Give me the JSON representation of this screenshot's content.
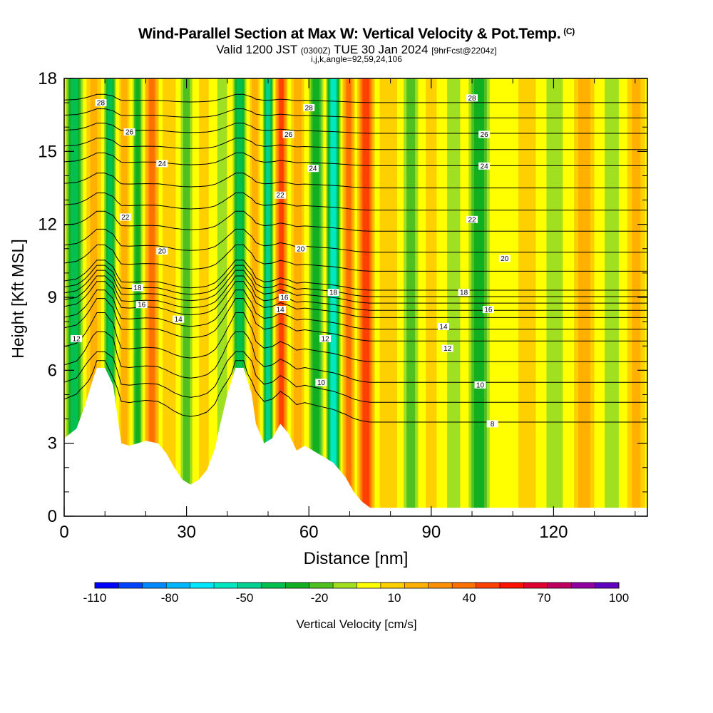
{
  "title": {
    "main": "Wind-Parallel Section at Max W: Vertical Velocity & Pot.Temp.",
    "copyright": "(C)",
    "valid_prefix": "Valid 1200 JST",
    "valid_utc": "(0300Z)",
    "valid_date": "TUE 30 Jan 2024",
    "forecast": "[9hrFcst@2204z]",
    "params": "i,j,k,angle=92,59,24,106"
  },
  "chart_data": {
    "type": "heatmap",
    "xlabel": "Distance [nm]",
    "ylabel": "Height [Kft MSL]",
    "xlim": [
      0,
      143
    ],
    "ylim": [
      0,
      18
    ],
    "x_ticks": [
      "0",
      "30",
      "60",
      "90",
      "120"
    ],
    "y_ticks": [
      "0",
      "3",
      "6",
      "9",
      "12",
      "15",
      "18"
    ],
    "colorbar": {
      "label": "Vertical Velocity [cm/s]",
      "min": -110,
      "max": 100,
      "step": 10,
      "tick_labels": [
        "-110",
        "-80",
        "-50",
        "-20",
        "10",
        "40",
        "70",
        "100"
      ],
      "colors": [
        "#0000ff",
        "#0044ff",
        "#0088ff",
        "#00b8ff",
        "#00e8ff",
        "#00e8c0",
        "#00d090",
        "#00c050",
        "#10b020",
        "#50c020",
        "#a0e020",
        "#ffff00",
        "#ffd000",
        "#ffb000",
        "#ff9000",
        "#ff7000",
        "#ff4000",
        "#ff1000",
        "#e00030",
        "#c00060",
        "#9000a0",
        "#6000c0"
      ]
    },
    "vertical_velocity_bands": [
      {
        "x": 2,
        "w": -35
      },
      {
        "x": 8,
        "w": 25
      },
      {
        "x": 11,
        "w": -40
      },
      {
        "x": 15,
        "w": 20
      },
      {
        "x": 18,
        "w": -30
      },
      {
        "x": 21,
        "w": 45
      },
      {
        "x": 26,
        "w": 15
      },
      {
        "x": 30,
        "w": -20
      },
      {
        "x": 34,
        "w": 10
      },
      {
        "x": 39,
        "w": -10
      },
      {
        "x": 43,
        "w": -40
      },
      {
        "x": 47,
        "w": 20
      },
      {
        "x": 50,
        "w": -45
      },
      {
        "x": 53,
        "w": 55
      },
      {
        "x": 57,
        "w": 20
      },
      {
        "x": 62,
        "w": -25
      },
      {
        "x": 66,
        "w": -55
      },
      {
        "x": 70,
        "w": 45
      },
      {
        "x": 73,
        "w": 50
      },
      {
        "x": 80,
        "w": 15
      },
      {
        "x": 85,
        "w": -15
      },
      {
        "x": 90,
        "w": 10
      },
      {
        "x": 95,
        "w": -10
      },
      {
        "x": 102,
        "w": -25
      },
      {
        "x": 108,
        "w": 5
      },
      {
        "x": 113,
        "w": 15
      },
      {
        "x": 120,
        "w": -10
      },
      {
        "x": 128,
        "w": 20
      },
      {
        "x": 134,
        "w": -10
      },
      {
        "x": 141,
        "w": 25
      }
    ],
    "terrain_kft": [
      [
        0,
        3.2
      ],
      [
        3,
        3.6
      ],
      [
        5,
        4.5
      ],
      [
        7,
        5.6
      ],
      [
        8,
        6.1
      ],
      [
        10,
        6.1
      ],
      [
        12,
        5.4
      ],
      [
        14,
        3.0
      ],
      [
        16,
        2.9
      ],
      [
        18,
        3.0
      ],
      [
        20,
        3.1
      ],
      [
        23,
        3.0
      ],
      [
        25,
        2.6
      ],
      [
        27,
        2.0
      ],
      [
        29,
        1.5
      ],
      [
        31,
        1.3
      ],
      [
        33,
        1.5
      ],
      [
        35,
        1.9
      ],
      [
        37,
        2.8
      ],
      [
        38,
        3.6
      ],
      [
        40,
        5.0
      ],
      [
        42,
        6.1
      ],
      [
        44,
        6.1
      ],
      [
        46,
        5.0
      ],
      [
        47,
        3.8
      ],
      [
        49,
        3.0
      ],
      [
        51,
        3.2
      ],
      [
        53,
        3.8
      ],
      [
        55,
        3.4
      ],
      [
        57,
        2.7
      ],
      [
        59,
        2.9
      ],
      [
        61,
        2.7
      ],
      [
        63,
        2.5
      ],
      [
        66,
        2.2
      ],
      [
        69,
        1.6
      ],
      [
        71,
        1.0
      ],
      [
        73,
        0.6
      ],
      [
        75,
        0.35
      ],
      [
        143,
        0.35
      ]
    ],
    "theta_contours": [
      {
        "label": "8",
        "x": 105,
        "y": 3.8
      },
      {
        "label": "10",
        "x": 63,
        "y": 5.5
      },
      {
        "label": "10",
        "x": 102,
        "y": 5.4
      },
      {
        "label": "12",
        "x": 3,
        "y": 7.3
      },
      {
        "label": "12",
        "x": 64,
        "y": 7.3
      },
      {
        "label": "12",
        "x": 94,
        "y": 6.9
      },
      {
        "label": "14",
        "x": 28,
        "y": 8.1
      },
      {
        "label": "14",
        "x": 53,
        "y": 8.5
      },
      {
        "label": "14",
        "x": 93,
        "y": 7.8
      },
      {
        "label": "16",
        "x": 19,
        "y": 8.7
      },
      {
        "label": "16",
        "x": 54,
        "y": 9.0
      },
      {
        "label": "16",
        "x": 104,
        "y": 8.5
      },
      {
        "label": "18",
        "x": 18,
        "y": 9.4
      },
      {
        "label": "18",
        "x": 66,
        "y": 9.2
      },
      {
        "label": "18",
        "x": 98,
        "y": 9.2
      },
      {
        "label": "20",
        "x": 24,
        "y": 10.9
      },
      {
        "label": "20",
        "x": 58,
        "y": 11.0
      },
      {
        "label": "20",
        "x": 108,
        "y": 10.6
      },
      {
        "label": "22",
        "x": 15,
        "y": 12.3
      },
      {
        "label": "22",
        "x": 53,
        "y": 13.2
      },
      {
        "label": "22",
        "x": 100,
        "y": 12.2
      },
      {
        "label": "24",
        "x": 24,
        "y": 14.5
      },
      {
        "label": "24",
        "x": 61,
        "y": 14.3
      },
      {
        "label": "24",
        "x": 103,
        "y": 14.4
      },
      {
        "label": "26",
        "x": 16,
        "y": 15.8
      },
      {
        "label": "26",
        "x": 55,
        "y": 15.7
      },
      {
        "label": "26",
        "x": 103,
        "y": 15.7
      },
      {
        "label": "28",
        "x": 9,
        "y": 17.0
      },
      {
        "label": "28",
        "x": 60,
        "y": 16.8
      },
      {
        "label": "28",
        "x": 100,
        "y": 17.2
      }
    ]
  }
}
